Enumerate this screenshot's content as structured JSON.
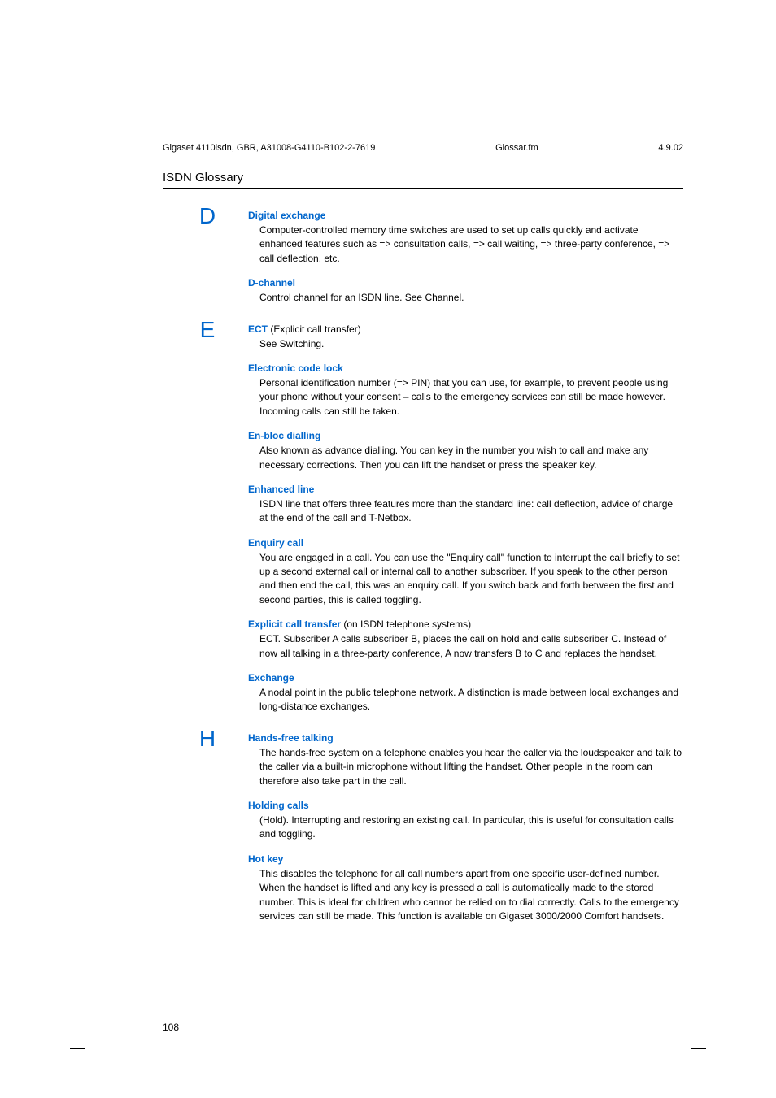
{
  "header": {
    "left": "Gigaset 4110isdn, GBR, A31008-G4110-B102-2-7619",
    "center": "Glossar.fm",
    "right": "4.9.02"
  },
  "section_title": "ISDN Glossary",
  "page_number": "108",
  "groups": [
    {
      "letter": "D",
      "entries": [
        {
          "term": "Digital exchange",
          "suffix": "",
          "definition": "Computer-controlled memory time switches are used to set up calls quickly and activate enhanced features such as => consultation calls, => call waiting, => three-party conference, => call deflection, etc."
        },
        {
          "term": "D-channel",
          "suffix": "",
          "definition": "Control channel for an ISDN line. See Channel."
        }
      ]
    },
    {
      "letter": "E",
      "entries": [
        {
          "term": "ECT",
          "suffix": " (Explicit call transfer)",
          "definition": "See Switching."
        },
        {
          "term": "Electronic code lock",
          "suffix": "",
          "definition": "Personal identification number (=> PIN) that you can use, for example, to prevent people using your phone without your consent – calls to the emergency services can still be made however. Incoming calls can still be taken."
        },
        {
          "term": "En-bloc dialling",
          "suffix": "",
          "definition": "Also known as advance dialling. You can key in the number you wish to call and make any necessary corrections. Then you can lift the handset or press the speaker key."
        },
        {
          "term": "Enhanced line",
          "suffix": "",
          "definition": "ISDN line that offers three features more than the standard line: call deflection, advice of charge at the end of the call and T-Netbox."
        },
        {
          "term": "Enquiry call",
          "suffix": "",
          "definition": "You are engaged in a call. You can use the \"Enquiry call\" function to interrupt the call briefly to set up a second external call or internal call to another subscriber. If you speak to the other person and then end the call, this was an enquiry call. If you switch back and forth between the first and second parties, this is called toggling."
        },
        {
          "term": "Explicit call transfer",
          "suffix": " (on ISDN telephone systems)",
          "definition": "ECT. Subscriber A calls subscriber B, places the call on hold and calls subscriber C. Instead of now all talking in a three-party conference, A now transfers B to C and replaces the handset."
        },
        {
          "term": "Exchange",
          "suffix": "",
          "definition": "A nodal point in the public telephone network. A distinction is made between local exchanges and long-distance exchanges."
        }
      ]
    },
    {
      "letter": "H",
      "entries": [
        {
          "term": "Hands-free talking",
          "suffix": "",
          "definition": "The hands-free system on a telephone enables you hear the caller via the loudspeaker and talk to the caller via a built-in microphone without lifting the handset. Other people in the room can therefore also take part in the call."
        },
        {
          "term": "Holding calls",
          "suffix": "",
          "definition": "(Hold). Interrupting and restoring an existing call. In particular, this is useful for consultation calls and toggling."
        },
        {
          "term": "Hot key",
          "suffix": "",
          "definition": "This disables the telephone for all call numbers apart from one specific user-defined number. When the handset is lifted and any key is pressed a call is automatically made to the stored number. This is ideal for children who cannot be relied on to dial correctly. Calls to the emergency services can still be made. This function is available on Gigaset 3000/2000 Comfort handsets."
        }
      ]
    }
  ]
}
